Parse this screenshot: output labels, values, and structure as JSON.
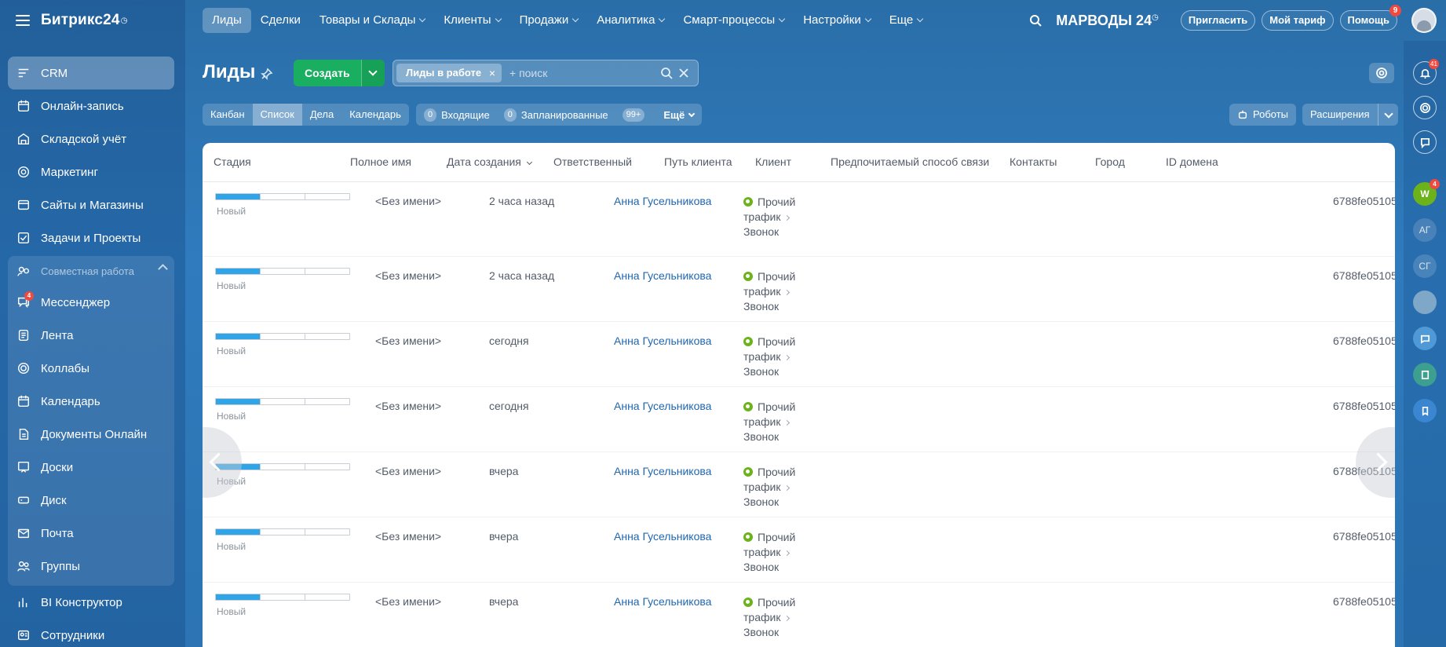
{
  "brand": {
    "name": "Битрикс24",
    "clock": "◷"
  },
  "sidebar": {
    "items": [
      {
        "label": "CRM",
        "icon": "crm-icon",
        "active": true
      },
      {
        "label": "Онлайн-запись",
        "icon": "booking-icon"
      },
      {
        "label": "Складской учёт",
        "icon": "warehouse-icon"
      },
      {
        "label": "Маркетинг",
        "icon": "marketing-icon"
      },
      {
        "label": "Сайты и Магазины",
        "icon": "sites-icon"
      },
      {
        "label": "Задачи и Проекты",
        "icon": "tasks-icon"
      }
    ],
    "group": {
      "label": "Совместная работа",
      "items": [
        {
          "label": "Мессенджер",
          "icon": "messenger-icon",
          "badge": "4"
        },
        {
          "label": "Лента",
          "icon": "feed-icon"
        },
        {
          "label": "Коллабы",
          "icon": "collabs-icon"
        },
        {
          "label": "Календарь",
          "icon": "calendar-icon"
        },
        {
          "label": "Документы Онлайн",
          "icon": "documents-icon"
        },
        {
          "label": "Доски",
          "icon": "boards-icon"
        },
        {
          "label": "Диск",
          "icon": "disk-icon"
        },
        {
          "label": "Почта",
          "icon": "mail-icon"
        },
        {
          "label": "Группы",
          "icon": "groups-icon"
        }
      ]
    },
    "after": [
      {
        "label": "BI Конструктор",
        "icon": "bi-icon"
      },
      {
        "label": "Сотрудники",
        "icon": "employees-icon"
      }
    ]
  },
  "topnav": {
    "items": [
      {
        "label": "Лиды",
        "active": true,
        "dropdown": false
      },
      {
        "label": "Сделки",
        "dropdown": false
      },
      {
        "label": "Товары и Склады",
        "dropdown": true
      },
      {
        "label": "Клиенты",
        "dropdown": true
      },
      {
        "label": "Продажи",
        "dropdown": true
      },
      {
        "label": "Аналитика",
        "dropdown": true
      },
      {
        "label": "Смарт-процессы",
        "dropdown": true
      },
      {
        "label": "Настройки",
        "dropdown": true
      },
      {
        "label": "Еще",
        "dropdown": true
      }
    ],
    "portal": "МАРВОДЫ 24",
    "portal_clock": "◷",
    "invite": "Пригласить",
    "tariff": "Мой тариф",
    "help": "Помощь",
    "help_badge": "9"
  },
  "page": {
    "title": "Лиды",
    "create": "Создать",
    "filter_chip": "Лиды в работе",
    "filter_chip_close": "×",
    "search_placeholder": "+ поиск"
  },
  "views": [
    "Канбан",
    "Список",
    "Дела",
    "Календарь"
  ],
  "active_view": 1,
  "counters": [
    {
      "count": "0",
      "label": "Входящие"
    },
    {
      "count": "0",
      "label": "Запланированные"
    },
    {
      "count": "99+",
      "label": ""
    }
  ],
  "counters_more": "Ещё",
  "robots": "Роботы",
  "extensions": "Расширения",
  "grid": {
    "columns": [
      "Стадия",
      "Полное имя",
      "Дата создания",
      "Ответственный",
      "Путь клиента",
      "Клиент",
      "Предпочитаемый способ связи",
      "Контакты",
      "Город",
      "ID домена"
    ],
    "rows": [
      {
        "stage": "Новый",
        "name": "<Без имени>",
        "date": "2 часа назад",
        "owner": "Анна Гусельникова",
        "path1": "Прочий",
        "path2": "трафик",
        "path3": "Звонок",
        "domain": "6788fe05105"
      },
      {
        "stage": "Новый",
        "name": "<Без имени>",
        "date": "2 часа назад",
        "owner": "Анна Гусельникова",
        "path1": "Прочий",
        "path2": "трафик",
        "path3": "Звонок",
        "domain": "6788fe05105"
      },
      {
        "stage": "Новый",
        "name": "<Без имени>",
        "date": "сегодня",
        "owner": "Анна Гусельникова",
        "path1": "Прочий",
        "path2": "трафик",
        "path3": "Звонок",
        "domain": "6788fe05105"
      },
      {
        "stage": "Новый",
        "name": "<Без имени>",
        "date": "сегодня",
        "owner": "Анна Гусельникова",
        "path1": "Прочий",
        "path2": "трафик",
        "path3": "Звонок",
        "domain": "6788fe05105"
      },
      {
        "stage": "Новый",
        "name": "<Без имени>",
        "date": "вчера",
        "owner": "Анна Гусельникова",
        "path1": "Прочий",
        "path2": "трафик",
        "path3": "Звонок",
        "domain": "6788fe05105"
      },
      {
        "stage": "Новый",
        "name": "<Без имени>",
        "date": "вчера",
        "owner": "Анна Гусельникова",
        "path1": "Прочий",
        "path2": "трафик",
        "path3": "Звонок",
        "domain": "6788fe05105"
      },
      {
        "stage": "Новый",
        "name": "<Без имени>",
        "date": "вчера",
        "owner": "Анна Гусельникова",
        "path1": "Прочий",
        "path2": "трафик",
        "path3": "Звонок",
        "domain": "6788fe05105"
      }
    ]
  },
  "rail": {
    "notifications_badge": "41",
    "w_badge": "4",
    "w_label": "W",
    "ag_label": "АГ",
    "sg_label": "СГ"
  },
  "colors": {
    "accent": "#2fa4e7",
    "create": "#1aae61",
    "link": "#2067b0",
    "badge": "#f0493f"
  }
}
